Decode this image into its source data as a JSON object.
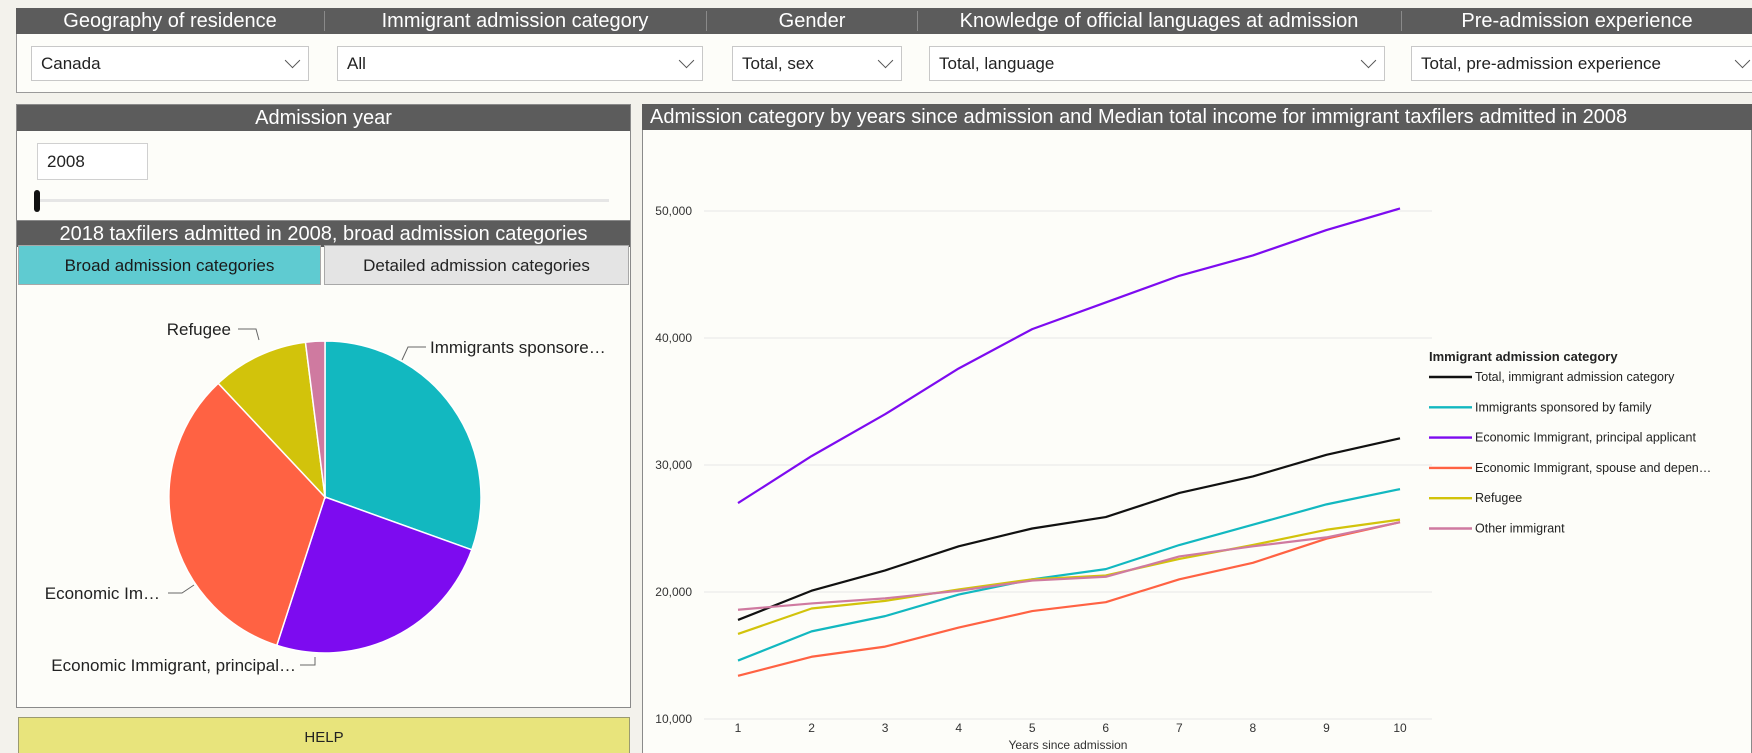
{
  "filters": {
    "headers": [
      "Geography of residence",
      "Immigrant admission category",
      "Gender",
      "Knowledge of official languages at admission",
      "Pre-admission experience"
    ],
    "values": [
      "Canada",
      "All",
      "Total, sex",
      "Total, language",
      "Total, pre-admission experience"
    ]
  },
  "admission_year": {
    "title": "Admission year",
    "value": "2008"
  },
  "pie_panel": {
    "title": "2018 taxfilers admitted in 2008, broad admission categories",
    "tab_broad": "Broad admission categories",
    "tab_detailed": "Detailed admission categories",
    "labels": [
      "Immigrants sponsore…",
      "Economic Immigrant, principal…",
      "Economic Im…",
      "Refugee"
    ]
  },
  "help": {
    "label": "HELP"
  },
  "chart_title": "Admission category by years since admission and Median total income for immigrant taxfilers admitted in 2008",
  "chart_data": [
    {
      "type": "pie",
      "labels": [
        "Immigrants sponsored by family",
        "Economic Immigrant, principal applicant",
        "Economic Immigrant, spouse and dependants",
        "Refugee",
        "Other immigrant"
      ],
      "values": [
        30.5,
        24.5,
        33,
        10,
        2
      ],
      "colors": [
        "#12b8c0",
        "#7d0bf0",
        "#ff6243",
        "#d2c30b",
        "#cf7aa0"
      ]
    },
    {
      "type": "line",
      "xlabel": "Years since admission",
      "ylabel": "",
      "x": [
        1,
        2,
        3,
        4,
        5,
        6,
        7,
        8,
        9,
        10
      ],
      "ylim": [
        10000,
        50000
      ],
      "yticks": [
        "10,000",
        "20,000",
        "30,000",
        "40,000",
        "50,000"
      ],
      "grid": true,
      "legend_title": "Immigrant admission category",
      "legend_position": "right",
      "series": [
        {
          "name": "Total, immigrant admission category",
          "color": "#111111",
          "values": [
            17800,
            20100,
            21700,
            23600,
            25000,
            25900,
            27800,
            29100,
            30800,
            32100
          ]
        },
        {
          "name": "Immigrants sponsored by family",
          "color": "#12b8c0",
          "values": [
            14600,
            16900,
            18100,
            19800,
            21000,
            21800,
            23700,
            25300,
            26900,
            28100
          ]
        },
        {
          "name": "Economic Immigrant, principal applicant",
          "color": "#7d0bf0",
          "values": [
            27000,
            30700,
            34000,
            37600,
            40700,
            42800,
            44900,
            46500,
            48500,
            50200
          ]
        },
        {
          "name": "Economic Immigrant, spouse and depen…",
          "color": "#ff6243",
          "values": [
            13400,
            14900,
            15700,
            17200,
            18500,
            19200,
            21000,
            22300,
            24200,
            25500
          ]
        },
        {
          "name": "Refugee",
          "color": "#d2c30b",
          "values": [
            16700,
            18700,
            19300,
            20200,
            21000,
            21300,
            22600,
            23700,
            24900,
            25700
          ]
        },
        {
          "name": "Other immigrant",
          "color": "#cf7aa0",
          "values": [
            18600,
            19100,
            19500,
            20100,
            20900,
            21200,
            22800,
            23600,
            24300,
            25500
          ]
        }
      ]
    }
  ]
}
